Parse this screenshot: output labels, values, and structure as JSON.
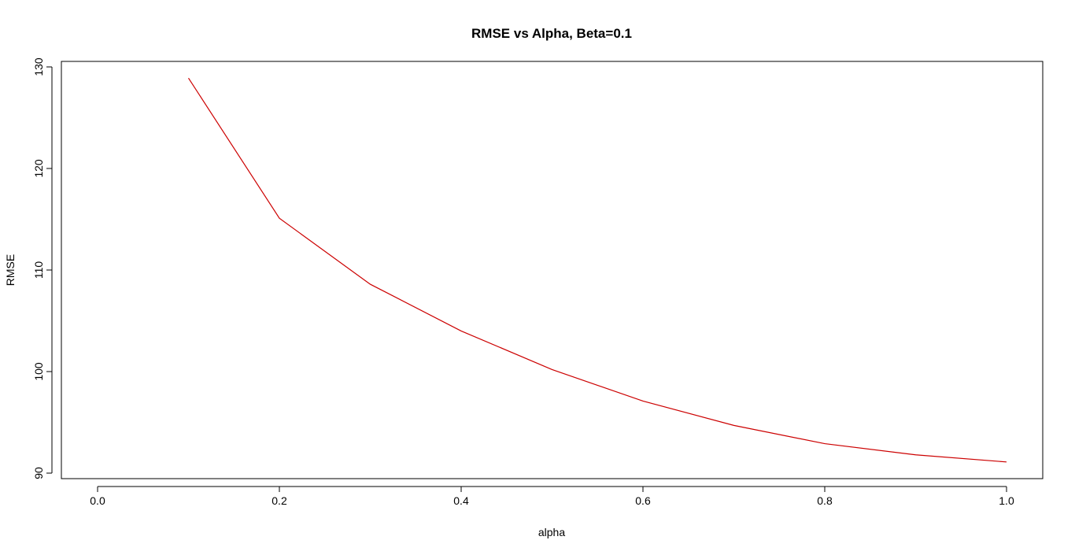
{
  "chart_data": {
    "type": "line",
    "title": "RMSE vs Alpha, Beta=0.1",
    "xlabel": "alpha",
    "ylabel": "RMSE",
    "xlim": [
      0.0,
      1.0
    ],
    "ylim": [
      90,
      130
    ],
    "x_ticks": [
      "0.0",
      "0.2",
      "0.4",
      "0.6",
      "0.8",
      "1.0"
    ],
    "y_ticks": [
      "90",
      "100",
      "110",
      "120",
      "130"
    ],
    "grid": false,
    "series": [
      {
        "color": "#cc0000",
        "x": [
          0.1,
          0.2,
          0.3,
          0.4,
          0.5,
          0.6,
          0.7,
          0.8,
          0.9,
          1.0
        ],
        "y": [
          128.9,
          115.1,
          108.6,
          104.0,
          100.2,
          97.1,
          94.7,
          92.9,
          91.8,
          91.1
        ]
      }
    ]
  }
}
